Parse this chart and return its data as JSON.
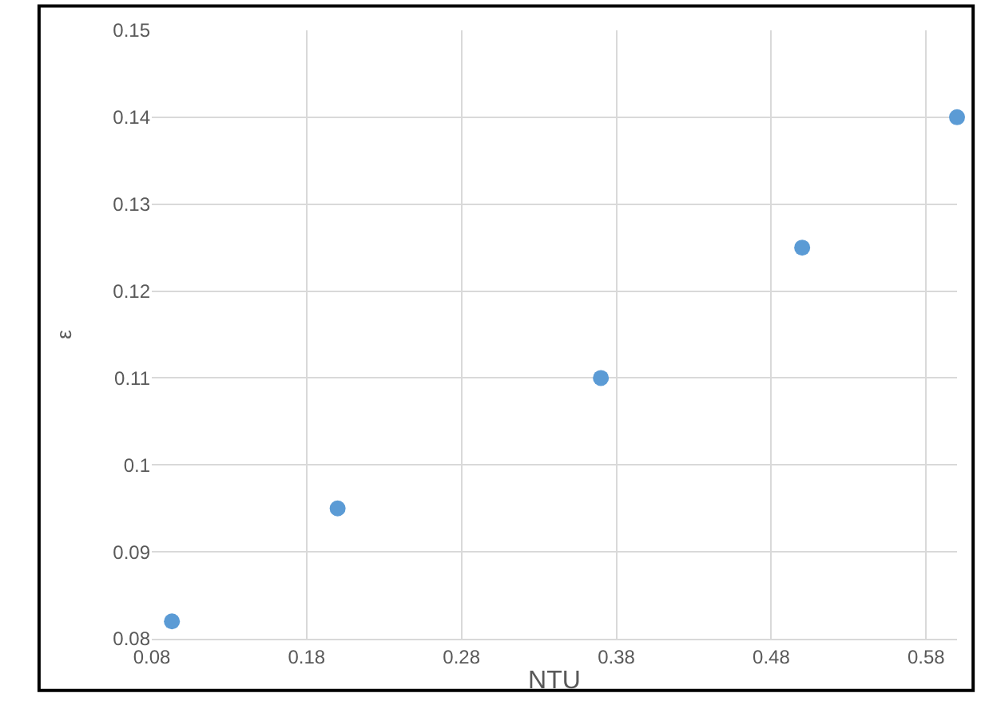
{
  "chart_data": {
    "type": "scatter",
    "xlabel": "NTU",
    "ylabel": "ε",
    "x": [
      0.093,
      0.2,
      0.37,
      0.5,
      0.6
    ],
    "series": [
      {
        "color": "#5b9bd5",
        "values": [
          0.082,
          0.095,
          0.11,
          0.125,
          0.14
        ]
      }
    ],
    "xlim": [
      0.08,
      0.6
    ],
    "xticks": [
      0.08,
      0.18,
      0.28,
      0.38,
      0.48,
      0.58
    ],
    "ylim": [
      0.08,
      0.15
    ],
    "yticks": [
      0.08,
      0.09,
      0.1,
      0.11,
      0.12,
      0.13,
      0.14,
      0.15
    ],
    "grid": true,
    "marker": "circle"
  }
}
